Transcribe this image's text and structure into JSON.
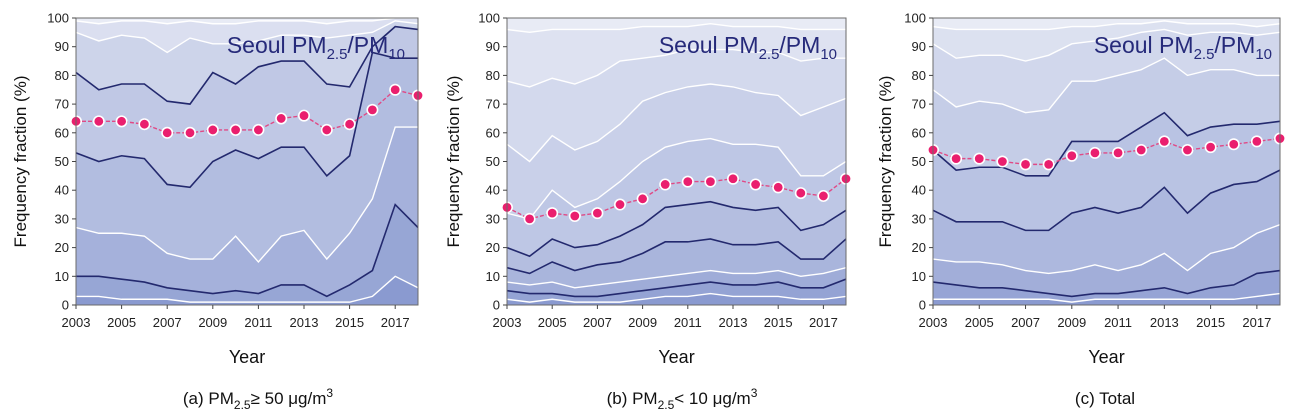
{
  "colors": {
    "band_top": "#e8ebf5",
    "band_bottom": "#8a9ad0",
    "dark_line": "#23296e",
    "white_line": "#ffffff",
    "marker": "#ea1f6e",
    "marker_line": "#e04a86",
    "title": "#262a7a"
  },
  "chart_data": [
    {
      "type": "area",
      "panel": "a",
      "title": "Seoul PM2.5/PM10",
      "title_main": "Seoul PM",
      "title_sub1": "2.5",
      "title_sep": "/PM",
      "title_sub2": "10",
      "xlabel": "Year",
      "ylabel": "Frequency fraction (%)",
      "caption": "(a) PM2.5 ≥ 50 μg/m3",
      "caption_pre": "(a) PM",
      "caption_sub": "2.5",
      "caption_mid": "≥ 50 μg/m",
      "caption_sup": "3",
      "xlim": [
        2003,
        2018
      ],
      "ylim": [
        0,
        100
      ],
      "xticks": [
        "2003",
        "2005",
        "2007",
        "2009",
        "2011",
        "2013",
        "2015",
        "2017"
      ],
      "yticks": [
        "0",
        "10",
        "20",
        "30",
        "40",
        "50",
        "60",
        "70",
        "80",
        "90",
        "100"
      ],
      "x": [
        2003,
        2004,
        2005,
        2006,
        2007,
        2008,
        2009,
        2010,
        2011,
        2012,
        2013,
        2014,
        2015,
        2016,
        2017,
        2018
      ],
      "percentile_lines": [
        {
          "name": "p5",
          "style": "white",
          "values": [
            3,
            3,
            2,
            2,
            2,
            1,
            1,
            1,
            1,
            1,
            1,
            1,
            1,
            3,
            10,
            6
          ]
        },
        {
          "name": "p10",
          "style": "dark",
          "values": [
            10,
            10,
            9,
            8,
            6,
            5,
            4,
            5,
            4,
            7,
            7,
            3,
            7,
            12,
            35,
            27
          ]
        },
        {
          "name": "p25",
          "style": "white",
          "values": [
            27,
            25,
            25,
            24,
            18,
            16,
            16,
            24,
            15,
            24,
            26,
            16,
            25,
            37,
            62,
            62
          ]
        },
        {
          "name": "p50",
          "style": "dark",
          "values": [
            53,
            50,
            52,
            51,
            42,
            41,
            50,
            54,
            51,
            55,
            55,
            45,
            52,
            88,
            86,
            86
          ]
        },
        {
          "name": "p75",
          "style": "dark",
          "values": [
            81,
            75,
            77,
            77,
            71,
            70,
            81,
            77,
            83,
            85,
            85,
            77,
            76,
            90,
            97,
            96
          ]
        },
        {
          "name": "p90",
          "style": "white",
          "values": [
            95,
            92,
            94,
            93,
            88,
            93,
            91,
            91,
            92,
            94,
            94,
            93,
            94,
            95,
            99,
            98
          ]
        },
        {
          "name": "p95",
          "style": "white",
          "values": [
            99,
            98,
            99,
            99,
            98,
            99,
            98,
            98,
            99,
            99,
            99,
            98,
            99,
            99,
            100,
            100
          ]
        }
      ],
      "ratio_series": {
        "name": "PM2.5/PM10",
        "values": [
          64,
          64,
          64,
          63,
          60,
          60,
          61,
          61,
          61,
          65,
          66,
          61,
          63,
          68,
          75,
          73
        ]
      }
    },
    {
      "type": "area",
      "panel": "b",
      "title": "Seoul PM2.5/PM10",
      "title_main": "Seoul PM",
      "title_sub1": "2.5",
      "title_sep": "/PM",
      "title_sub2": "10",
      "xlabel": "Year",
      "ylabel": "Frequency fraction (%)",
      "caption": "(b) PM2.5 < 10 μg/m3",
      "caption_pre": "(b) PM",
      "caption_sub": "2.5",
      "caption_mid": "< 10 μg/m",
      "caption_sup": "3",
      "xlim": [
        2003,
        2018
      ],
      "ylim": [
        0,
        100
      ],
      "xticks": [
        "2003",
        "2005",
        "2007",
        "2009",
        "2011",
        "2013",
        "2015",
        "2017"
      ],
      "yticks": [
        "0",
        "10",
        "20",
        "30",
        "40",
        "50",
        "60",
        "70",
        "80",
        "90",
        "100"
      ],
      "x": [
        2003,
        2004,
        2005,
        2006,
        2007,
        2008,
        2009,
        2010,
        2011,
        2012,
        2013,
        2014,
        2015,
        2016,
        2017,
        2018
      ],
      "percentile_lines": [
        {
          "name": "p5",
          "style": "white",
          "values": [
            2,
            1,
            2,
            1,
            1,
            1,
            2,
            3,
            3,
            4,
            3,
            3,
            3,
            2,
            2,
            3
          ]
        },
        {
          "name": "p10",
          "style": "dark",
          "values": [
            5,
            4,
            4,
            3,
            3,
            4,
            5,
            6,
            7,
            8,
            7,
            7,
            8,
            6,
            6,
            9
          ]
        },
        {
          "name": "p15",
          "style": "white",
          "values": [
            8,
            7,
            8,
            6,
            7,
            8,
            9,
            10,
            11,
            12,
            11,
            11,
            12,
            10,
            11,
            13
          ]
        },
        {
          "name": "p20",
          "style": "dark",
          "values": [
            13,
            11,
            15,
            12,
            14,
            15,
            18,
            22,
            22,
            23,
            21,
            21,
            22,
            16,
            16,
            23
          ]
        },
        {
          "name": "p25",
          "style": "dark",
          "values": [
            20,
            17,
            23,
            20,
            21,
            24,
            28,
            34,
            35,
            36,
            34,
            33,
            34,
            26,
            28,
            33
          ]
        },
        {
          "name": "p50",
          "style": "white",
          "values": [
            32,
            30,
            40,
            34,
            37,
            43,
            50,
            55,
            57,
            58,
            56,
            56,
            55,
            45,
            45,
            50
          ]
        },
        {
          "name": "p60",
          "style": "white",
          "values": [
            56,
            50,
            59,
            54,
            57,
            63,
            71,
            74,
            76,
            77,
            76,
            74,
            73,
            66,
            69,
            72
          ]
        },
        {
          "name": "p75",
          "style": "white",
          "values": [
            78,
            76,
            79,
            77,
            80,
            85,
            86,
            87,
            89,
            89,
            89,
            88,
            88,
            85,
            86,
            86
          ]
        },
        {
          "name": "p95",
          "style": "white",
          "values": [
            96,
            95,
            96,
            96,
            96,
            96,
            97,
            97,
            97,
            98,
            97,
            97,
            97,
            96,
            96,
            96
          ]
        }
      ],
      "ratio_series": {
        "name": "PM2.5/PM10",
        "values": [
          34,
          30,
          32,
          31,
          32,
          35,
          37,
          42,
          43,
          43,
          44,
          42,
          41,
          39,
          38,
          44
        ]
      }
    },
    {
      "type": "area",
      "panel": "c",
      "title": "Seoul PM2.5/PM10",
      "title_main": "Seoul PM",
      "title_sub1": "2.5",
      "title_sep": "/PM",
      "title_sub2": "10",
      "xlabel": "Year",
      "ylabel": "Frequency fraction (%)",
      "caption": "(c) Total",
      "caption_pre": "(c) Total",
      "caption_sub": "",
      "caption_mid": "",
      "caption_sup": "",
      "xlim": [
        2003,
        2018
      ],
      "ylim": [
        0,
        100
      ],
      "xticks": [
        "2003",
        "2005",
        "2007",
        "2009",
        "2011",
        "2013",
        "2015",
        "2017"
      ],
      "yticks": [
        "0",
        "10",
        "20",
        "30",
        "40",
        "50",
        "60",
        "70",
        "80",
        "90",
        "100"
      ],
      "x": [
        2003,
        2004,
        2005,
        2006,
        2007,
        2008,
        2009,
        2010,
        2011,
        2012,
        2013,
        2014,
        2015,
        2016,
        2017,
        2018
      ],
      "percentile_lines": [
        {
          "name": "p5",
          "style": "white",
          "values": [
            2,
            2,
            2,
            2,
            2,
            2,
            1,
            2,
            2,
            2,
            2,
            2,
            2,
            2,
            3,
            4
          ]
        },
        {
          "name": "p10",
          "style": "dark",
          "values": [
            8,
            7,
            6,
            6,
            5,
            4,
            3,
            4,
            4,
            5,
            6,
            4,
            6,
            7,
            11,
            12
          ]
        },
        {
          "name": "p25",
          "style": "white",
          "values": [
            16,
            15,
            15,
            14,
            12,
            11,
            12,
            14,
            12,
            14,
            18,
            12,
            18,
            20,
            25,
            28
          ]
        },
        {
          "name": "p50",
          "style": "dark",
          "values": [
            33,
            29,
            29,
            29,
            26,
            26,
            32,
            34,
            32,
            34,
            41,
            32,
            39,
            42,
            43,
            47
          ]
        },
        {
          "name": "p75",
          "style": "dark",
          "values": [
            54,
            47,
            48,
            48,
            45,
            45,
            57,
            57,
            57,
            62,
            67,
            59,
            62,
            63,
            63,
            64
          ]
        },
        {
          "name": "p80",
          "style": "white",
          "values": [
            75,
            69,
            71,
            70,
            67,
            68,
            78,
            78,
            80,
            82,
            86,
            80,
            82,
            82,
            80,
            80
          ]
        },
        {
          "name": "p90",
          "style": "white",
          "values": [
            91,
            86,
            87,
            87,
            85,
            87,
            91,
            92,
            93,
            95,
            96,
            94,
            95,
            95,
            94,
            95
          ]
        },
        {
          "name": "p95",
          "style": "white",
          "values": [
            97,
            96,
            96,
            96,
            96,
            96,
            97,
            97,
            98,
            98,
            99,
            98,
            98,
            98,
            97,
            98
          ]
        }
      ],
      "ratio_series": {
        "name": "PM2.5/PM10",
        "values": [
          54,
          51,
          51,
          50,
          49,
          49,
          52,
          53,
          53,
          54,
          57,
          54,
          55,
          56,
          57,
          58
        ]
      }
    }
  ]
}
